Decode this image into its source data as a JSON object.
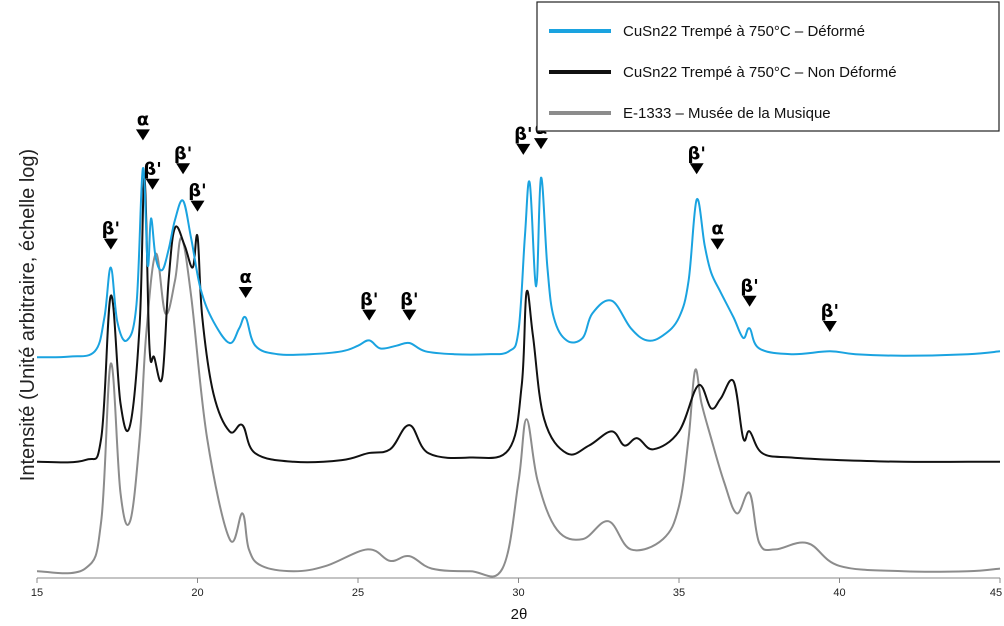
{
  "chart_data": {
    "type": "line",
    "xlabel": "2θ",
    "ylabel": "Intensité (Unité arbitraire, échelle log)",
    "xlim": [
      15,
      45
    ],
    "x_ticks": [
      "15",
      "20",
      "25",
      "30",
      "35",
      "40",
      "45"
    ],
    "y_scale": "log",
    "grid": false,
    "legend_position": "top-right",
    "series": [
      {
        "name": "CuSn22 Trempé à 750°C – Déformé",
        "color": "#1aa3e0",
        "x": [
          15,
          16,
          16.8,
          17.1,
          17.3,
          17.5,
          17.8,
          18.1,
          18.3,
          18.45,
          18.55,
          18.7,
          18.9,
          19.1,
          19.3,
          19.55,
          19.8,
          20.1,
          20.5,
          21,
          21.3,
          21.5,
          21.8,
          22.5,
          23.5,
          24.5,
          25,
          25.35,
          25.7,
          26.2,
          26.6,
          27.1,
          28,
          29,
          29.7,
          30.0,
          30.2,
          30.35,
          30.55,
          30.7,
          30.9,
          31.1,
          31.5,
          32,
          32.3,
          32.9,
          33.5,
          34,
          34.5,
          35,
          35.3,
          35.55,
          35.8,
          36.0,
          36.3,
          36.7,
          37.0,
          37.2,
          37.5,
          38.5,
          39.7,
          40.5,
          42,
          44,
          45
        ],
        "values": [
          32,
          32.2,
          34,
          48,
          80,
          46,
          38,
          55,
          220,
          82,
          132,
          88,
          78,
          96,
          130,
          158,
          108,
          64,
          46,
          37,
          43,
          48,
          36,
          33,
          33,
          34,
          36,
          38,
          35,
          36,
          37,
          34,
          33,
          33,
          34,
          42,
          110,
          190,
          66,
          200,
          80,
          48,
          38,
          39,
          50,
          57,
          43,
          38,
          40,
          48,
          70,
          160,
          100,
          76,
          62,
          48,
          39,
          43,
          35,
          33,
          34,
          33,
          32.5,
          33,
          34
        ]
      },
      {
        "name": "CuSn22 Trempé à 750°C – Non Déformé",
        "color": "#111111",
        "x": [
          15,
          16.5,
          17.0,
          17.3,
          17.6,
          17.9,
          18.2,
          18.35,
          18.5,
          18.65,
          18.9,
          19.1,
          19.3,
          19.6,
          19.85,
          20.0,
          20.15,
          20.5,
          21,
          21.4,
          21.8,
          23,
          24.5,
          25.3,
          26,
          26.6,
          27.2,
          28.5,
          29.7,
          30.1,
          30.25,
          30.45,
          30.8,
          31.5,
          32.2,
          32.9,
          33.3,
          33.7,
          34.2,
          35,
          35.6,
          36.0,
          36.3,
          36.7,
          37.0,
          37.2,
          37.6,
          38.5,
          40,
          42,
          44,
          45
        ],
        "values": [
          11,
          11.2,
          14,
          60,
          20,
          16,
          45,
          200,
          36,
          32,
          26,
          70,
          120,
          100,
          80,
          110,
          48,
          22,
          15,
          16,
          12,
          11,
          11.2,
          12,
          12.5,
          16,
          12,
          11.5,
          12.5,
          24,
          62,
          40,
          17,
          12,
          13,
          15,
          13,
          14,
          12.5,
          15,
          24,
          19,
          21,
          25,
          14,
          15,
          12,
          11.5,
          11.2,
          11,
          11,
          11
        ]
      },
      {
        "name": "E-1333 – Musée de la Musique",
        "color": "#8c8c8c",
        "x": [
          15,
          16.5,
          17.0,
          17.3,
          17.6,
          17.9,
          18.2,
          18.4,
          18.7,
          19.0,
          19.3,
          19.5,
          19.8,
          20.3,
          21,
          21.4,
          21.6,
          22,
          23,
          24,
          25.3,
          26,
          26.6,
          27.3,
          28.5,
          29.5,
          30.0,
          30.25,
          30.6,
          31.2,
          32,
          32.8,
          33.5,
          34.5,
          35.0,
          35.3,
          35.5,
          35.7,
          36.0,
          36.4,
          36.8,
          37.2,
          37.5,
          38.0,
          39.0,
          40,
          42,
          44,
          45
        ],
        "values": [
          3.6,
          3.7,
          6,
          30,
          8,
          6,
          14,
          40,
          92,
          50,
          70,
          108,
          60,
          14,
          5,
          6.5,
          4.5,
          3.8,
          3.6,
          3.8,
          4.5,
          4.0,
          4.2,
          3.7,
          3.6,
          3.7,
          9,
          17,
          9,
          5.5,
          5.0,
          6.0,
          4.5,
          5.0,
          7,
          14,
          28,
          20,
          14,
          9,
          6.5,
          8,
          4.8,
          4.5,
          4.8,
          3.8,
          3.6,
          3.6,
          3.7
        ]
      }
    ],
    "annotations": [
      {
        "label": "β'",
        "x": 17.3,
        "y": 95
      },
      {
        "label": "α",
        "x": 18.3,
        "y": 290
      },
      {
        "label": "β'",
        "x": 18.6,
        "y": 175
      },
      {
        "label": "β'",
        "x": 19.55,
        "y": 205
      },
      {
        "label": "β'",
        "x": 20.0,
        "y": 140
      },
      {
        "label": "α",
        "x": 21.5,
        "y": 58
      },
      {
        "label": "β'",
        "x": 25.35,
        "y": 46
      },
      {
        "label": "β'",
        "x": 26.6,
        "y": 46
      },
      {
        "label": "β'",
        "x": 30.15,
        "y": 250
      },
      {
        "label": "α",
        "x": 30.7,
        "y": 265
      },
      {
        "label": "β'",
        "x": 35.55,
        "y": 205
      },
      {
        "label": "α",
        "x": 36.2,
        "y": 95
      },
      {
        "label": "β'",
        "x": 37.2,
        "y": 53
      },
      {
        "label": "β'",
        "x": 39.7,
        "y": 41
      }
    ]
  }
}
